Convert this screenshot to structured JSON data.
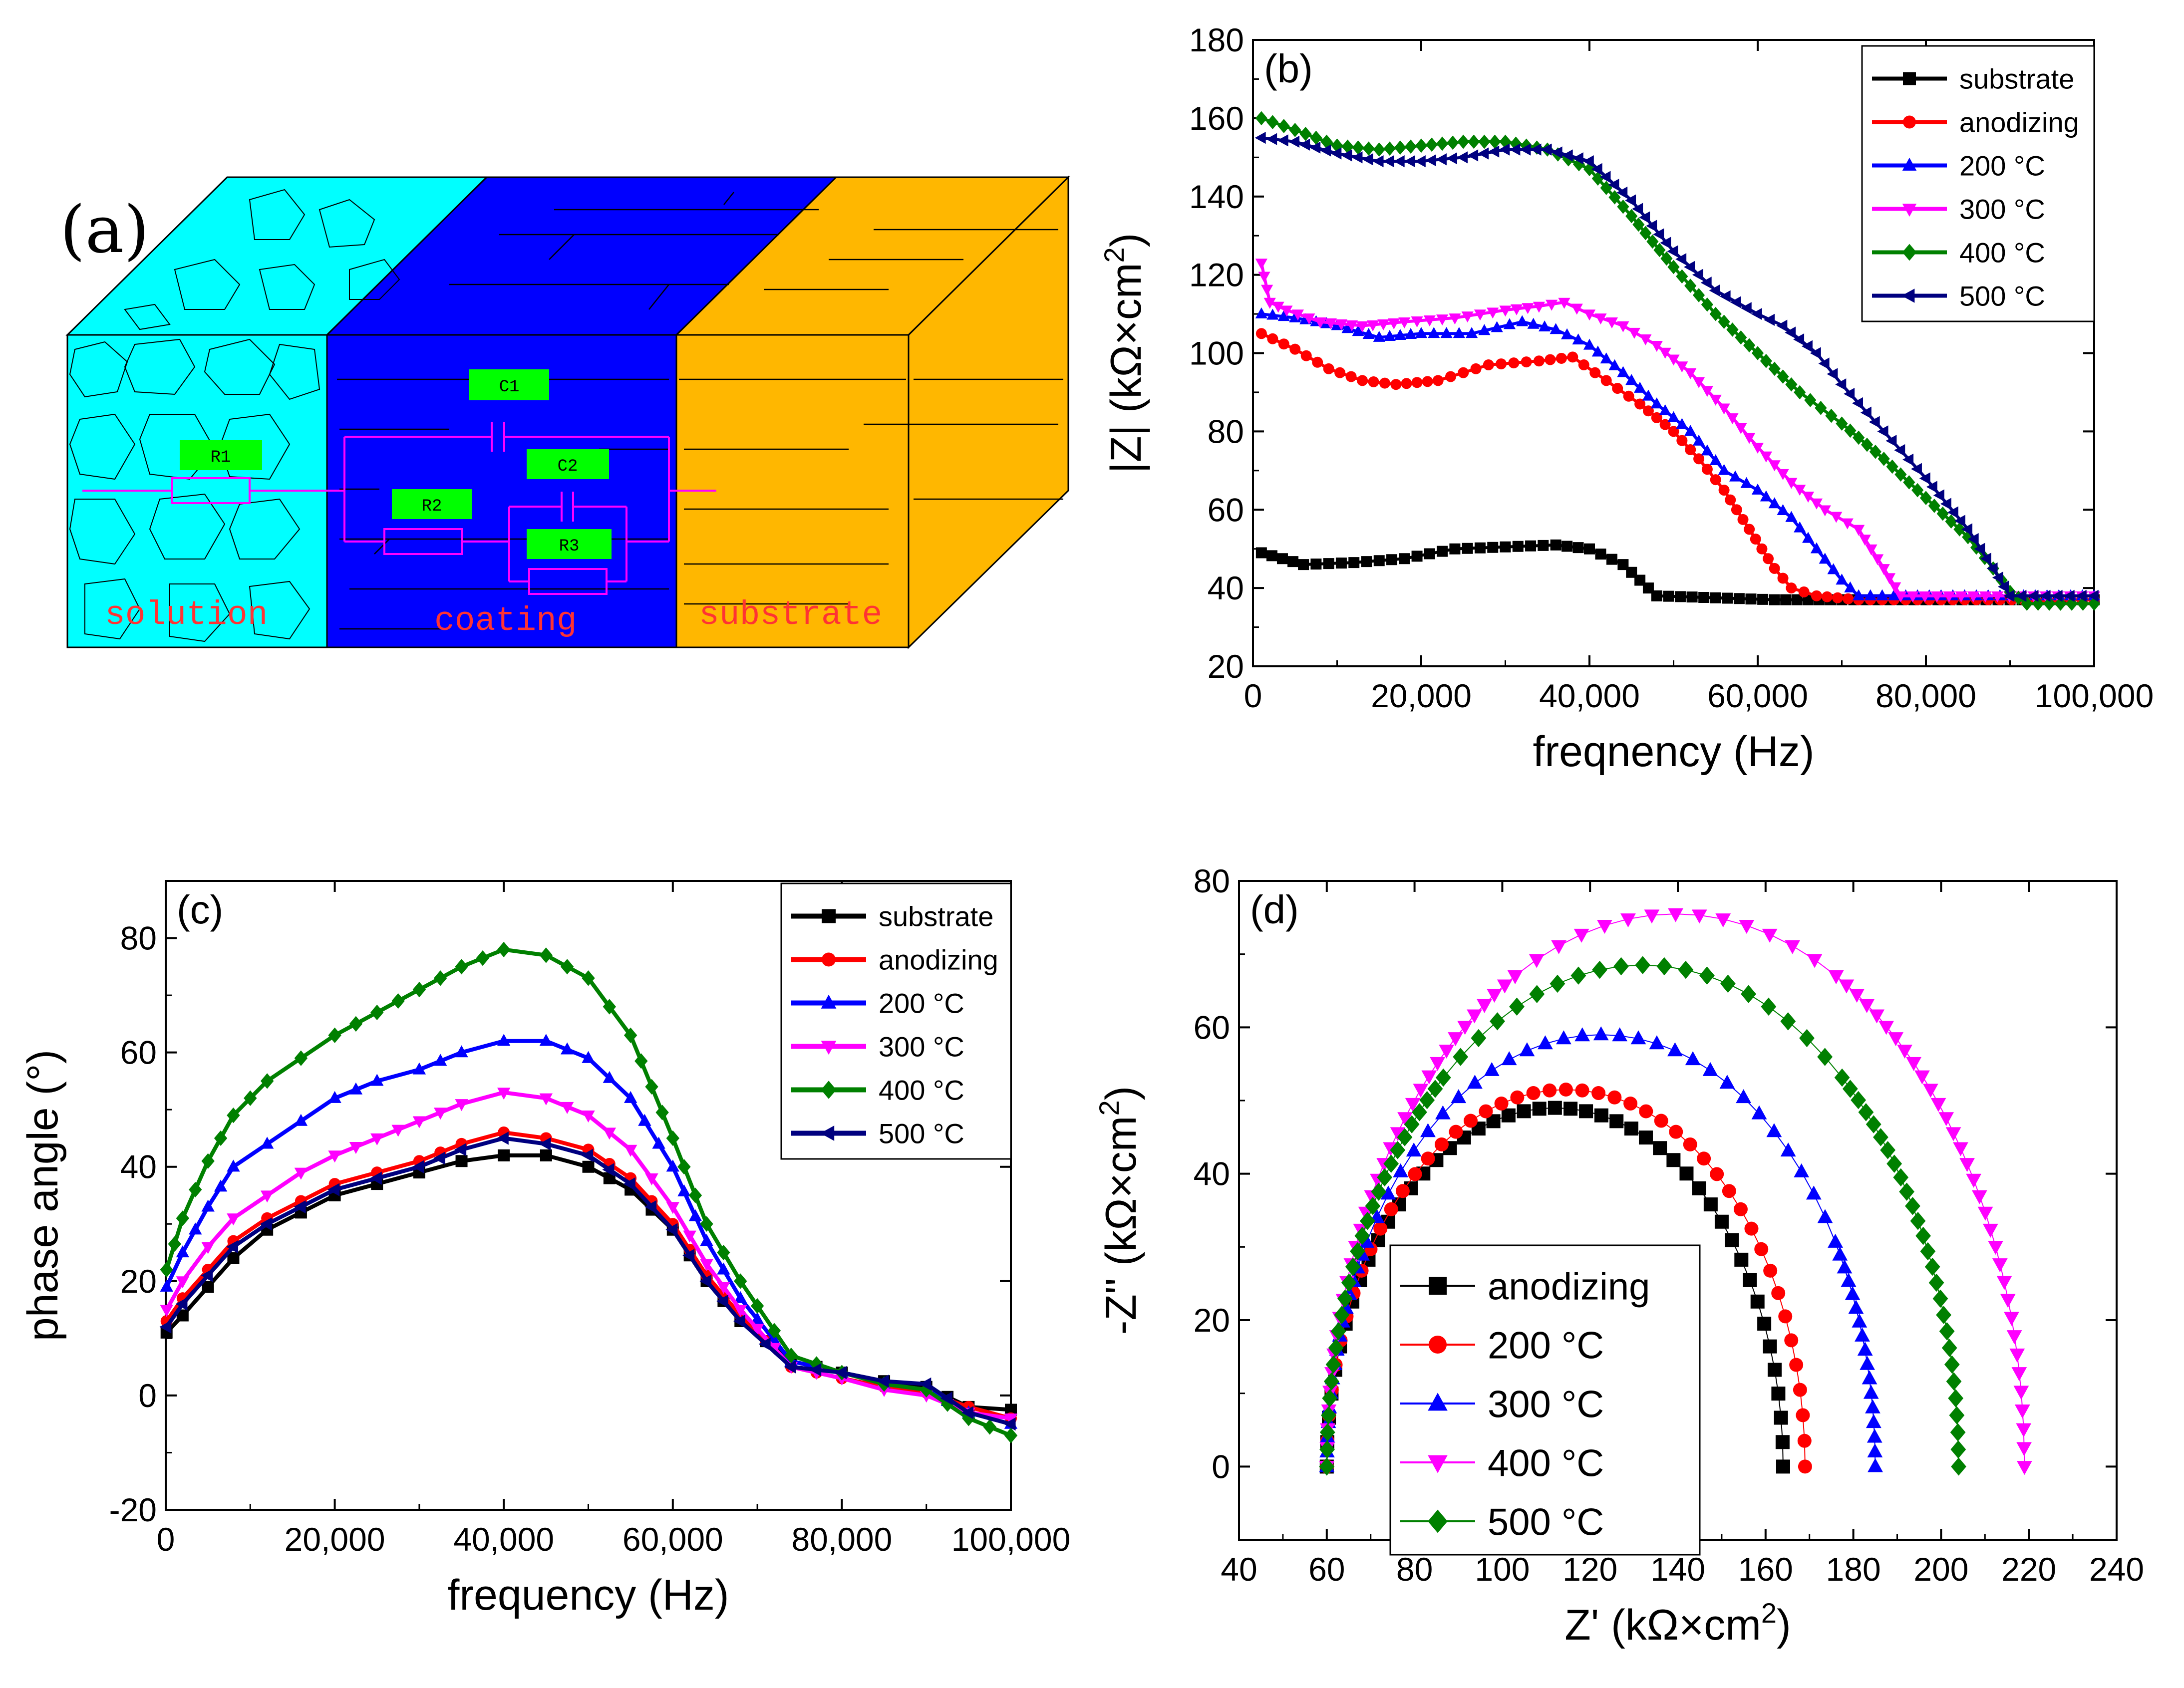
{
  "figure": {
    "panel_a": {
      "tag": "(a)",
      "regions": [
        "solution",
        "coating",
        "substrate"
      ],
      "components": [
        "R1",
        "R2",
        "R3",
        "C1",
        "C2"
      ],
      "colors": {
        "solution": "#00ffff",
        "coating": "#0000ff",
        "substrate": "#ffb700",
        "circuit": "#ff00ff",
        "label_box": "#00ff00",
        "region_text": "#ff3333"
      }
    }
  },
  "chart_data": [
    {
      "id": "b",
      "tag": "(b)",
      "type": "line",
      "title": "",
      "xlabel": "freqnency (Hz)",
      "ylabel": "|Z|  (kΩ×cm²)",
      "ylabel_main": "|Z|  (kΩ×cm",
      "ylabel_sup": "2",
      "ylabel_tail": ")",
      "xlim": [
        0,
        100000
      ],
      "ylim": [
        20,
        180
      ],
      "xticks": [
        0,
        20000,
        40000,
        60000,
        80000,
        100000
      ],
      "xtick_labels": [
        "0",
        "20,000",
        "40,000",
        "60,000",
        "80,000",
        "100,000"
      ],
      "yticks": [
        20,
        40,
        60,
        80,
        100,
        120,
        140,
        160,
        180
      ],
      "ytick_labels": [
        "20",
        "40",
        "60",
        "80",
        "100",
        "120",
        "140",
        "160",
        "180"
      ],
      "legend_position": "top-right",
      "series": [
        {
          "name": "substrate",
          "color": "#000000",
          "marker": "square",
          "x": [
            1000,
            6000,
            12000,
            18000,
            24000,
            30000,
            36000,
            40000,
            44000,
            48000,
            55000,
            62000,
            70000,
            100000
          ],
          "y": [
            49,
            46,
            46.5,
            47.5,
            50,
            50.5,
            51,
            50,
            46,
            38,
            37.5,
            37,
            37,
            37
          ]
        },
        {
          "name": "anodizing",
          "color": "#ff0000",
          "marker": "circle",
          "x": [
            1000,
            5000,
            9000,
            13000,
            17000,
            22000,
            28000,
            34000,
            38000,
            42000,
            46000,
            50000,
            53000,
            56000,
            59000,
            62000,
            64000,
            67000,
            72000,
            100000
          ],
          "y": [
            105,
            101,
            96,
            93,
            92,
            93,
            97,
            98,
            99,
            93,
            87,
            80,
            73,
            65,
            55,
            45,
            40,
            38,
            37,
            37
          ]
        },
        {
          "name": "200 °C",
          "color": "#0000ff",
          "marker": "triangle-up",
          "x": [
            1000,
            5000,
            10000,
            15000,
            20000,
            26000,
            32000,
            36000,
            40000,
            44000,
            48000,
            52000,
            56000,
            60000,
            64000,
            67000,
            70000,
            72000,
            100000
          ],
          "y": [
            110,
            109,
            107,
            104,
            105,
            105,
            108,
            106,
            102,
            95,
            87,
            80,
            70,
            65,
            58,
            50,
            42,
            38,
            38
          ]
        },
        {
          "name": "300 °C",
          "color": "#ff00ff",
          "marker": "triangle-down",
          "x": [
            1000,
            2000,
            4000,
            8000,
            13000,
            18000,
            24000,
            30000,
            34000,
            37000,
            40000,
            44000,
            48000,
            52000,
            56000,
            60000,
            64000,
            68000,
            72000,
            75000,
            77000,
            100000
          ],
          "y": [
            123,
            113,
            111,
            108,
            107,
            108,
            109,
            111,
            112,
            113,
            110,
            107,
            102,
            95,
            86,
            76,
            67,
            60,
            55,
            45,
            38,
            38
          ]
        },
        {
          "name": "400 °C",
          "color": "#008000",
          "marker": "diamond",
          "x": [
            1000,
            5000,
            10000,
            15000,
            20000,
            25000,
            30000,
            35000,
            40000,
            45000,
            50000,
            55000,
            60000,
            65000,
            70000,
            75000,
            80000,
            85000,
            88000,
            90000,
            92000,
            100000
          ],
          "y": [
            160,
            157,
            153,
            152,
            153,
            154,
            154,
            152,
            147,
            135,
            122,
            110,
            100,
            90,
            82,
            73,
            63,
            53,
            45,
            39,
            36,
            36
          ]
        },
        {
          "name": "500 °C",
          "color": "#00007f",
          "marker": "triangle-left",
          "x": [
            1000,
            5000,
            10000,
            15000,
            20000,
            25000,
            30000,
            35000,
            40000,
            45000,
            50000,
            55000,
            60000,
            63000,
            67000,
            70000,
            75000,
            80000,
            85000,
            88000,
            90000,
            100000
          ],
          "y": [
            155,
            154,
            151,
            149,
            149,
            150,
            152,
            152,
            149,
            139,
            126,
            116,
            110,
            107,
            100,
            92,
            80,
            68,
            55,
            45,
            38,
            38
          ]
        }
      ]
    },
    {
      "id": "c",
      "tag": "(c)",
      "type": "line",
      "title": "",
      "xlabel": "frequency (Hz)",
      "ylabel": "phase angle (°)",
      "xlim": [
        0,
        100000
      ],
      "ylim": [
        -20,
        90
      ],
      "xticks": [
        0,
        20000,
        40000,
        60000,
        80000,
        100000
      ],
      "xtick_labels": [
        "0",
        "20,000",
        "40,000",
        "60,000",
        "80,000",
        "100,000"
      ],
      "yticks": [
        -20,
        0,
        20,
        40,
        60,
        80
      ],
      "ytick_labels": [
        "-20",
        "0",
        "20",
        "40",
        "60",
        "80"
      ],
      "legend_position": "top-right",
      "series": [
        {
          "name": "substrate",
          "color": "#000000",
          "marker": "square",
          "x": [
            100,
            2000,
            5000,
            8000,
            12000,
            16000,
            20000,
            25000,
            30000,
            35000,
            40000,
            45000,
            50000,
            55000,
            60000,
            64000,
            68000,
            74000,
            80000,
            85000,
            90000,
            95000,
            100000
          ],
          "y": [
            11,
            14,
            19,
            24,
            29,
            32,
            35,
            37,
            39,
            41,
            42,
            42,
            40,
            36,
            29,
            20,
            13,
            6,
            4,
            2.5,
            1.5,
            -2,
            -2.5
          ]
        },
        {
          "name": "anodizing",
          "color": "#ff0000",
          "marker": "circle",
          "x": [
            100,
            2000,
            5000,
            8000,
            12000,
            16000,
            20000,
            25000,
            30000,
            35000,
            40000,
            45000,
            50000,
            55000,
            60000,
            64000,
            68000,
            74000,
            80000,
            85000,
            90000,
            95000,
            100000
          ],
          "y": [
            13,
            17,
            22,
            27,
            31,
            34,
            37,
            39,
            41,
            44,
            46,
            45,
            43,
            38,
            30,
            21,
            14,
            5,
            3,
            1.5,
            0.5,
            -2,
            -4
          ]
        },
        {
          "name": "200 °C",
          "color": "#0000ff",
          "marker": "triangle-up",
          "x": [
            100,
            2000,
            5000,
            8000,
            12000,
            16000,
            20000,
            25000,
            30000,
            35000,
            40000,
            45000,
            50000,
            55000,
            60000,
            64000,
            68000,
            74000,
            80000,
            85000,
            90000,
            95000,
            100000
          ],
          "y": [
            19,
            25,
            33,
            40,
            44,
            48,
            52,
            55,
            57,
            60,
            62,
            62,
            59,
            52,
            40,
            27,
            17,
            6,
            4,
            2,
            1,
            -3,
            -5
          ]
        },
        {
          "name": "300 °C",
          "color": "#ff00ff",
          "marker": "triangle-down",
          "x": [
            100,
            2000,
            5000,
            8000,
            12000,
            16000,
            20000,
            25000,
            30000,
            35000,
            40000,
            45000,
            50000,
            55000,
            60000,
            64000,
            68000,
            74000,
            80000,
            85000,
            90000,
            95000,
            100000
          ],
          "y": [
            15,
            20,
            26,
            31,
            35,
            39,
            42,
            45,
            48,
            51,
            53,
            52,
            49,
            43,
            33,
            23,
            15,
            5,
            3,
            1,
            0,
            -3,
            -4
          ]
        },
        {
          "name": "400 °C",
          "color": "#008000",
          "marker": "diamond",
          "x": [
            100,
            2000,
            5000,
            8000,
            12000,
            16000,
            20000,
            25000,
            30000,
            35000,
            40000,
            45000,
            50000,
            55000,
            60000,
            64000,
            68000,
            74000,
            80000,
            85000,
            90000,
            95000,
            100000
          ],
          "y": [
            22,
            31,
            41,
            49,
            55,
            59,
            63,
            67,
            71,
            75,
            78,
            77,
            73,
            63,
            45,
            30,
            20,
            7,
            4,
            2,
            1,
            -4,
            -7
          ]
        },
        {
          "name": "500 °C",
          "color": "#00007f",
          "marker": "triangle-left",
          "x": [
            100,
            2000,
            5000,
            8000,
            12000,
            16000,
            20000,
            25000,
            30000,
            35000,
            40000,
            45000,
            50000,
            55000,
            60000,
            64000,
            68000,
            74000,
            80000,
            85000,
            90000,
            95000,
            100000
          ],
          "y": [
            12,
            16,
            21,
            26,
            30,
            33,
            36,
            38,
            40,
            43,
            45,
            44,
            42,
            37,
            29,
            20,
            13,
            5,
            4,
            2.5,
            2,
            -3,
            -5
          ]
        }
      ]
    },
    {
      "id": "d",
      "tag": "(d)",
      "type": "scatter",
      "title": "",
      "xlabel": "Z' (kΩ×cm²)",
      "xlabel_main": "Z' (kΩ×cm",
      "xlabel_sup": "2",
      "xlabel_tail": ")",
      "ylabel": "-Z'' (kΩ×cm²)",
      "ylabel_main": "-Z'' (kΩ×cm",
      "ylabel_sup": "2",
      "ylabel_tail": ")",
      "xlim": [
        40,
        240
      ],
      "ylim": [
        -10,
        80
      ],
      "xticks": [
        40,
        60,
        80,
        100,
        120,
        140,
        160,
        180,
        200,
        220,
        240
      ],
      "xtick_labels": [
        "40",
        "60",
        "80",
        "100",
        "120",
        "140",
        "160",
        "180",
        "200",
        "220",
        "240"
      ],
      "yticks": [
        0,
        20,
        40,
        60,
        80
      ],
      "ytick_labels": [
        "0",
        "20",
        "40",
        "60",
        "80"
      ],
      "legend_position": "bottom-left",
      "series": [
        {
          "name": "anodizing",
          "color": "#000000",
          "marker": "square",
          "center": 112,
          "radius": 52,
          "peak": 49
        },
        {
          "name": "200 °C",
          "color": "#ff0000",
          "marker": "circle",
          "center": 114.5,
          "radius": 54.5,
          "peak": 51.5
        },
        {
          "name": "300 °C",
          "color": "#0000ff",
          "marker": "triangle-up",
          "center": 122.5,
          "radius": 62.5,
          "peak": 59
        },
        {
          "name": "400 °C",
          "color": "#ff00ff",
          "marker": "triangle-down",
          "center": 139.5,
          "radius": 79.5,
          "peak": 75.5
        },
        {
          "name": "500 °C",
          "color": "#008000",
          "marker": "diamond",
          "center": 132,
          "radius": 72,
          "peak": 68.5
        }
      ]
    }
  ]
}
